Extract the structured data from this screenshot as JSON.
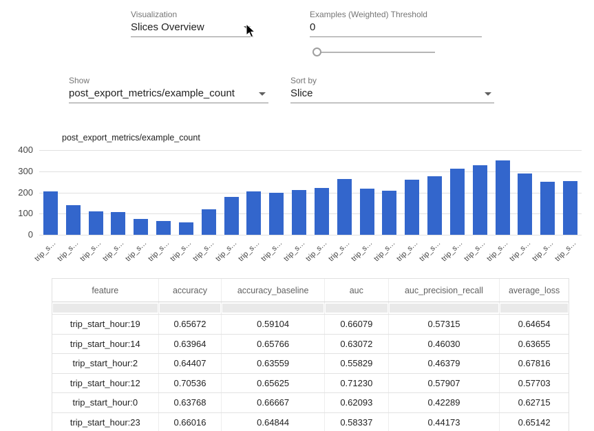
{
  "controls": {
    "visualization": {
      "label": "Visualization",
      "value": "Slices Overview"
    },
    "threshold": {
      "label": "Examples (Weighted) Threshold",
      "value": "0",
      "slider_value": 0
    },
    "show": {
      "label": "Show",
      "value": "post_export_metrics/example_count"
    },
    "sort_by": {
      "label": "Sort by",
      "value": "Slice"
    }
  },
  "chart_data": {
    "type": "bar",
    "legend": "post_export_metrics/example_count",
    "bar_color": "#3366cc",
    "ylim": [
      0,
      400
    ],
    "yticks": [
      0,
      100,
      200,
      300,
      400
    ],
    "grid": true,
    "categories": [
      "trip_s…",
      "trip_s…",
      "trip_s…",
      "trip_s…",
      "trip_s…",
      "trip_s…",
      "trip_s…",
      "trip_s…",
      "trip_s…",
      "trip_s…",
      "trip_s…",
      "trip_s…",
      "trip_s…",
      "trip_s…",
      "trip_s…",
      "trip_s…",
      "trip_s…",
      "trip_s…",
      "trip_s…",
      "trip_s…",
      "trip_s…",
      "trip_s…",
      "trip_s…",
      "trip_s…"
    ],
    "values": [
      205,
      140,
      112,
      108,
      75,
      65,
      60,
      120,
      178,
      205,
      200,
      210,
      222,
      265,
      218,
      208,
      260,
      277,
      312,
      330,
      350,
      290,
      252,
      255
    ]
  },
  "table": {
    "columns": [
      "feature",
      "accuracy",
      "accuracy_baseline",
      "auc",
      "auc_precision_recall",
      "average_loss"
    ],
    "rows": [
      [
        "trip_start_hour:19",
        "0.65672",
        "0.59104",
        "0.66079",
        "0.57315",
        "0.64654"
      ],
      [
        "trip_start_hour:14",
        "0.63964",
        "0.65766",
        "0.63072",
        "0.46030",
        "0.63655"
      ],
      [
        "trip_start_hour:2",
        "0.64407",
        "0.63559",
        "0.55829",
        "0.46379",
        "0.67816"
      ],
      [
        "trip_start_hour:12",
        "0.70536",
        "0.65625",
        "0.71230",
        "0.57907",
        "0.57703"
      ],
      [
        "trip_start_hour:0",
        "0.63768",
        "0.66667",
        "0.62093",
        "0.42289",
        "0.62715"
      ],
      [
        "trip_start_hour:23",
        "0.66016",
        "0.64844",
        "0.58337",
        "0.44173",
        "0.65142"
      ]
    ]
  }
}
